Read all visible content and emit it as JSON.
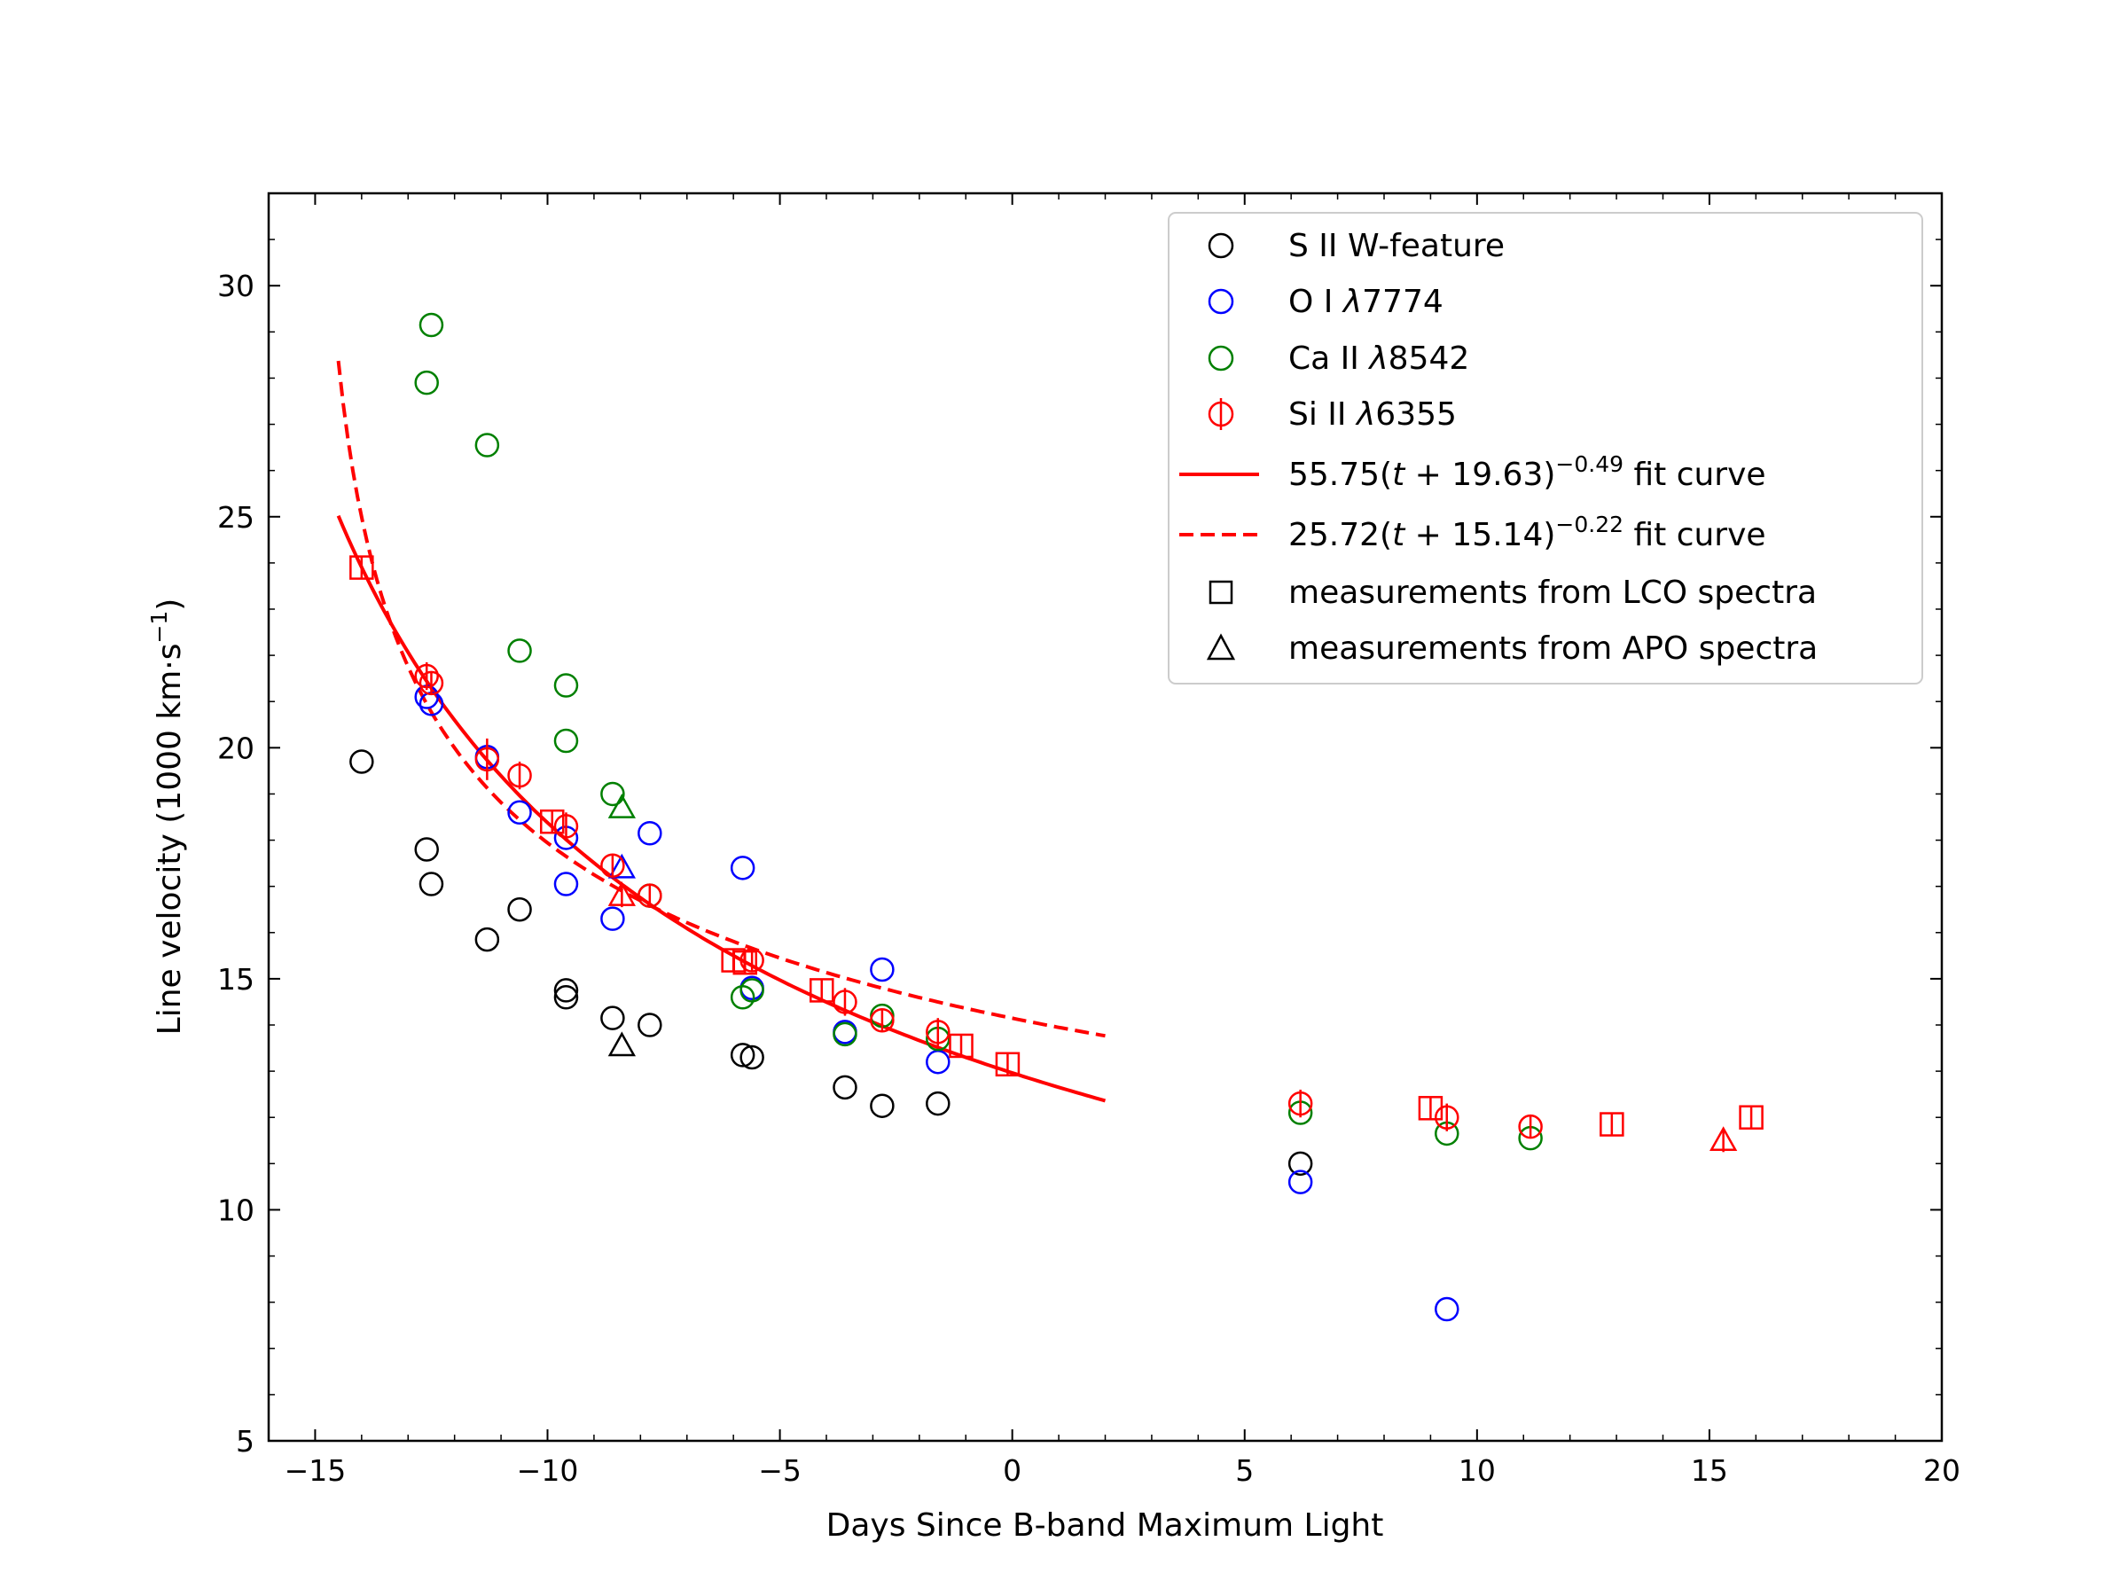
{
  "chart_data": {
    "type": "scatter",
    "title": "",
    "xlabel": "Days Since B-band Maximum Light",
    "ylabel": "Line velocity (1000 km·s",
    "ylabel_unit_exp": "−1",
    "ylabel_close": ")",
    "xlim": [
      -16,
      20
    ],
    "ylim": [
      5,
      32
    ],
    "x_ticks": [
      -15,
      -10,
      -5,
      0,
      5,
      10,
      15,
      20
    ],
    "x_tick_labels": [
      "−15",
      "−10",
      "−5",
      "0",
      "5",
      "10",
      "15",
      "20"
    ],
    "y_ticks": [
      5,
      10,
      15,
      20,
      25,
      30
    ],
    "y_tick_labels": [
      "5",
      "10",
      "15",
      "20",
      "25",
      "30"
    ],
    "colors": {
      "S II": "#000000",
      "O I": "#0000ff",
      "Ca II": "#008000",
      "Si II": "#ff0000",
      "fit": "#ff0000"
    },
    "series": [
      {
        "name": "S II W-feature",
        "color": "#000000",
        "points": [
          {
            "x": -14.0,
            "y": 19.7,
            "m": "o"
          },
          {
            "x": -12.6,
            "y": 17.8,
            "m": "o"
          },
          {
            "x": -12.5,
            "y": 17.05,
            "m": "o"
          },
          {
            "x": -11.3,
            "y": 15.85,
            "m": "o"
          },
          {
            "x": -10.6,
            "y": 16.5,
            "m": "o"
          },
          {
            "x": -9.6,
            "y": 14.75,
            "m": "o"
          },
          {
            "x": -9.6,
            "y": 14.6,
            "m": "o"
          },
          {
            "x": -8.6,
            "y": 14.15,
            "m": "o"
          },
          {
            "x": -8.4,
            "y": 13.55,
            "m": "^"
          },
          {
            "x": -7.8,
            "y": 14.0,
            "m": "o"
          },
          {
            "x": -5.8,
            "y": 13.35,
            "m": "o"
          },
          {
            "x": -5.6,
            "y": 13.3,
            "m": "o"
          },
          {
            "x": -3.6,
            "y": 12.65,
            "m": "o"
          },
          {
            "x": -2.8,
            "y": 12.25,
            "m": "o"
          },
          {
            "x": -1.6,
            "y": 12.3,
            "m": "o"
          },
          {
            "x": 6.2,
            "y": 11.0,
            "m": "o"
          }
        ]
      },
      {
        "name": "O I λ7774",
        "color": "#0000ff",
        "points": [
          {
            "x": -12.6,
            "y": 21.1,
            "m": "o"
          },
          {
            "x": -12.5,
            "y": 20.95,
            "m": "o"
          },
          {
            "x": -11.3,
            "y": 19.8,
            "m": "o"
          },
          {
            "x": -10.6,
            "y": 18.6,
            "m": "o"
          },
          {
            "x": -9.6,
            "y": 18.05,
            "m": "o"
          },
          {
            "x": -9.6,
            "y": 17.05,
            "m": "o"
          },
          {
            "x": -8.6,
            "y": 16.3,
            "m": "o"
          },
          {
            "x": -8.4,
            "y": 17.4,
            "m": "^"
          },
          {
            "x": -7.8,
            "y": 18.15,
            "m": "o"
          },
          {
            "x": -5.8,
            "y": 17.4,
            "m": "o"
          },
          {
            "x": -5.6,
            "y": 14.8,
            "m": "o"
          },
          {
            "x": -3.6,
            "y": 13.85,
            "m": "o"
          },
          {
            "x": -2.8,
            "y": 15.2,
            "m": "o"
          },
          {
            "x": -1.6,
            "y": 13.2,
            "m": "o"
          },
          {
            "x": 6.2,
            "y": 10.6,
            "m": "o"
          },
          {
            "x": 9.35,
            "y": 7.85,
            "m": "o"
          }
        ]
      },
      {
        "name": "Ca II λ8542",
        "color": "#008000",
        "points": [
          {
            "x": -12.6,
            "y": 27.9,
            "m": "o"
          },
          {
            "x": -12.5,
            "y": 29.15,
            "m": "o"
          },
          {
            "x": -11.3,
            "y": 26.55,
            "m": "o"
          },
          {
            "x": -10.6,
            "y": 22.1,
            "m": "o"
          },
          {
            "x": -9.6,
            "y": 21.35,
            "m": "o"
          },
          {
            "x": -9.6,
            "y": 20.15,
            "m": "o"
          },
          {
            "x": -8.6,
            "y": 19.0,
            "m": "o"
          },
          {
            "x": -8.4,
            "y": 18.7,
            "m": "^"
          },
          {
            "x": -7.8,
            "y": 16.8,
            "m": "o"
          },
          {
            "x": -5.8,
            "y": 14.6,
            "m": "o"
          },
          {
            "x": -5.6,
            "y": 14.75,
            "m": "o"
          },
          {
            "x": -3.6,
            "y": 13.8,
            "m": "o"
          },
          {
            "x": -2.8,
            "y": 14.2,
            "m": "o"
          },
          {
            "x": -1.6,
            "y": 13.7,
            "m": "o"
          },
          {
            "x": 6.2,
            "y": 12.1,
            "m": "o"
          },
          {
            "x": 9.35,
            "y": 11.65,
            "m": "o"
          },
          {
            "x": 11.15,
            "y": 11.55,
            "m": "o"
          }
        ]
      },
      {
        "name": "Si II λ6355",
        "color": "#ff0000",
        "points": [
          {
            "x": -12.6,
            "y": 21.55,
            "m": "o",
            "err": 0.3
          },
          {
            "x": -12.5,
            "y": 21.4,
            "m": "o",
            "err": 0.25
          },
          {
            "x": -11.3,
            "y": 19.75,
            "m": "o",
            "err": 0.45
          },
          {
            "x": -10.6,
            "y": 19.4,
            "m": "o",
            "err": 0.3
          },
          {
            "x": -9.6,
            "y": 18.3,
            "m": "o",
            "err": 0.3
          },
          {
            "x": -8.6,
            "y": 17.45,
            "m": "o",
            "err": 0.25
          },
          {
            "x": -7.8,
            "y": 16.8,
            "m": "o",
            "err": 0.25
          },
          {
            "x": -5.6,
            "y": 15.4,
            "m": "o",
            "err": 0.25
          },
          {
            "x": -3.6,
            "y": 14.5,
            "m": "o",
            "err": 0.3
          },
          {
            "x": -2.8,
            "y": 14.1,
            "m": "o",
            "err": 0.25
          },
          {
            "x": -1.6,
            "y": 13.85,
            "m": "o",
            "err": 0.3
          },
          {
            "x": 6.2,
            "y": 12.3,
            "m": "o",
            "err": 0.3
          },
          {
            "x": 9.35,
            "y": 12.0,
            "m": "o",
            "err": 0.3
          },
          {
            "x": 11.15,
            "y": 11.8,
            "m": "o",
            "err": 0.25
          },
          {
            "x": -14.0,
            "y": 23.9,
            "m": "s",
            "err": 0.25
          },
          {
            "x": -9.9,
            "y": 18.4,
            "m": "s",
            "err": 0.25
          },
          {
            "x": -6.0,
            "y": 15.4,
            "m": "s",
            "err": 0.25
          },
          {
            "x": -5.75,
            "y": 15.35,
            "m": "s",
            "err": 0.25
          },
          {
            "x": -4.1,
            "y": 14.75,
            "m": "s",
            "err": 0.25
          },
          {
            "x": -1.1,
            "y": 13.55,
            "m": "s",
            "err": 0.25
          },
          {
            "x": -0.1,
            "y": 13.15,
            "m": "s",
            "err": 0.25
          },
          {
            "x": 9.0,
            "y": 12.2,
            "m": "s",
            "err": 0.25
          },
          {
            "x": 12.9,
            "y": 11.85,
            "m": "s",
            "err": 0.25
          },
          {
            "x": 15.9,
            "y": 12.0,
            "m": "s",
            "err": 0.25
          },
          {
            "x": -8.4,
            "y": 16.8,
            "m": "^",
            "err": 0.25
          },
          {
            "x": 15.3,
            "y": 11.5,
            "m": "^",
            "err": 0.25
          }
        ]
      }
    ],
    "fits": [
      {
        "name": "solid",
        "A": 55.75,
        "t0": 19.63,
        "p": 0.49,
        "xrange": [
          -14.5,
          2.0
        ],
        "style": "solid"
      },
      {
        "name": "dashed",
        "A": 25.72,
        "t0": 15.14,
        "p": 0.22,
        "xrange": [
          -14.5,
          2.0
        ],
        "style": "dashed"
      }
    ],
    "legend": {
      "placement": "top-right",
      "entries": [
        {
          "key": "s2",
          "label": "S II W-feature"
        },
        {
          "key": "o1",
          "pre": "O I ",
          "lam": "λ",
          "num": "7774"
        },
        {
          "key": "ca2",
          "pre": "Ca II ",
          "lam": "λ",
          "num": "8542"
        },
        {
          "key": "si2",
          "pre": "Si II ",
          "lam": "λ",
          "num": "6355"
        },
        {
          "key": "fit1",
          "a": "55.75(",
          "t": "t",
          "b": " + 19.63)",
          "exp": "−0.49",
          "c": " fit curve"
        },
        {
          "key": "fit2",
          "a": "25.72(",
          "t": "t",
          "b": " + 15.14)",
          "exp": "−0.22",
          "c": " fit curve"
        },
        {
          "key": "lco",
          "label": "measurements from LCO spectra"
        },
        {
          "key": "apo",
          "label": "measurements from APO spectra"
        }
      ]
    }
  }
}
